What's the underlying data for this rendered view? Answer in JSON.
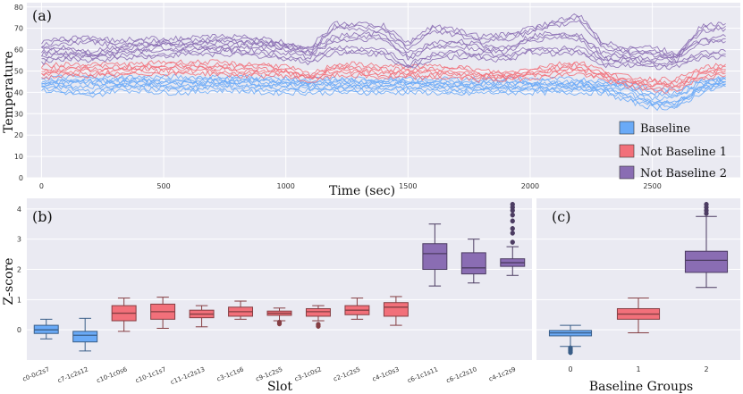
{
  "colors": {
    "baseline": "#6aaaf7",
    "not_baseline_1": "#f2707a",
    "not_baseline_2": "#8a6db3",
    "panel_bg": "#eaeaf2",
    "grid": "#ffffff"
  },
  "chart_data": [
    {
      "id": "a",
      "type": "line",
      "panel_label": "(a)",
      "xlabel": "Time (sec)",
      "ylabel": "Temperature",
      "xlim": [
        -60,
        2860
      ],
      "ylim": [
        0,
        82
      ],
      "xticks": [
        0,
        500,
        1000,
        1500,
        2000,
        2500
      ],
      "yticks": [
        0,
        10,
        20,
        30,
        40,
        50,
        60,
        70,
        80
      ],
      "legend": {
        "position": "bottom-right",
        "entries": [
          "Baseline",
          "Not Baseline 1",
          "Not Baseline 2"
        ]
      },
      "series": [
        {
          "name": "Baseline",
          "group": 0,
          "x": [
            0,
            100,
            200,
            300,
            400,
            500,
            600,
            700,
            800,
            900,
            1000,
            1100,
            1200,
            1300,
            1400,
            1500,
            1600,
            1700,
            1800,
            1900,
            2000,
            2100,
            2200,
            2300,
            2400,
            2500,
            2600,
            2700,
            2800
          ],
          "y": [
            44,
            44,
            44,
            44,
            45,
            44,
            44,
            45,
            45,
            44,
            44,
            44,
            44,
            44,
            44,
            44,
            44,
            43,
            43,
            43,
            43,
            43,
            43,
            42,
            41,
            36,
            36,
            43,
            45
          ]
        },
        {
          "name": "Baseline",
          "group": 0,
          "x": [
            0,
            100,
            200,
            300,
            400,
            500,
            600,
            700,
            800,
            900,
            1000,
            1100,
            1200,
            1300,
            1400,
            1500,
            1600,
            1700,
            1800,
            1900,
            2000,
            2100,
            2200,
            2300,
            2400,
            2500,
            2600,
            2700,
            2800
          ],
          "y": [
            46,
            46,
            46,
            46,
            46,
            46,
            46,
            46,
            46,
            46,
            45,
            45,
            45,
            45,
            45,
            45,
            45,
            45,
            45,
            45,
            45,
            45,
            45,
            44,
            44,
            40,
            40,
            45,
            46
          ]
        },
        {
          "name": "Baseline",
          "group": 0,
          "x": [
            0,
            100,
            200,
            300,
            400,
            500,
            600,
            700,
            800,
            900,
            1000,
            1100,
            1200,
            1300,
            1400,
            1500,
            1600,
            1700,
            1800,
            1900,
            2000,
            2100,
            2200,
            2300,
            2400,
            2500,
            2600,
            2700,
            2800
          ],
          "y": [
            42,
            41,
            39,
            42,
            42,
            41,
            41,
            42,
            42,
            41,
            41,
            41,
            41,
            41,
            41,
            41,
            41,
            40,
            41,
            41,
            41,
            41,
            41,
            41,
            37,
            34,
            34,
            41,
            44
          ]
        },
        {
          "name": "Not Baseline 1",
          "group": 1,
          "x": [
            0,
            100,
            200,
            300,
            400,
            500,
            600,
            700,
            800,
            900,
            1000,
            1100,
            1200,
            1300,
            1400,
            1500,
            1600,
            1700,
            1800,
            1900,
            2000,
            2100,
            2200,
            2300,
            2400,
            2500,
            2600,
            2700,
            2800
          ],
          "y": [
            51,
            52,
            52,
            52,
            52,
            53,
            53,
            53,
            52,
            52,
            51,
            47,
            52,
            52,
            51,
            51,
            51,
            51,
            49,
            48,
            50,
            52,
            53,
            49,
            46,
            45,
            45,
            50,
            52
          ]
        },
        {
          "name": "Not Baseline 1",
          "group": 1,
          "x": [
            0,
            100,
            200,
            300,
            400,
            500,
            600,
            700,
            800,
            900,
            1000,
            1100,
            1200,
            1300,
            1400,
            1500,
            1600,
            1700,
            1800,
            1900,
            2000,
            2100,
            2200,
            2300,
            2400,
            2500,
            2600,
            2700,
            2800
          ],
          "y": [
            48,
            49,
            49,
            49,
            50,
            50,
            50,
            50,
            49,
            49,
            49,
            46,
            49,
            49,
            48,
            48,
            48,
            48,
            47,
            47,
            48,
            49,
            50,
            47,
            44,
            42,
            42,
            48,
            49
          ]
        },
        {
          "name": "Not Baseline 2",
          "group": 2,
          "x": [
            0,
            100,
            200,
            300,
            400,
            500,
            600,
            700,
            800,
            900,
            1000,
            1100,
            1200,
            1300,
            1400,
            1500,
            1600,
            1700,
            1800,
            1900,
            2000,
            2100,
            2200,
            2300,
            2400,
            2500,
            2600,
            2700,
            2800
          ],
          "y": [
            62,
            64,
            65,
            63,
            64,
            64,
            64,
            65,
            65,
            64,
            62,
            60,
            71,
            71,
            70,
            62,
            70,
            68,
            65,
            66,
            69,
            72,
            75,
            62,
            60,
            60,
            57,
            70,
            71
          ]
        },
        {
          "name": "Not Baseline 2",
          "group": 2,
          "x": [
            0,
            100,
            200,
            300,
            400,
            500,
            600,
            700,
            800,
            900,
            1000,
            1100,
            1200,
            1300,
            1400,
            1500,
            1600,
            1700,
            1800,
            1900,
            2000,
            2100,
            2200,
            2300,
            2400,
            2500,
            2600,
            2700,
            2800
          ],
          "y": [
            59,
            60,
            58,
            60,
            61,
            62,
            62,
            62,
            62,
            62,
            61,
            59,
            65,
            66,
            66,
            57,
            62,
            63,
            61,
            60,
            65,
            67,
            66,
            57,
            57,
            56,
            56,
            64,
            65
          ]
        },
        {
          "name": "Not Baseline 2",
          "group": 2,
          "x": [
            0,
            100,
            200,
            300,
            400,
            500,
            600,
            700,
            800,
            900,
            1000,
            1100,
            1200,
            1300,
            1400,
            1500,
            1600,
            1700,
            1800,
            1900,
            2000,
            2100,
            2200,
            2300,
            2400,
            2500,
            2600,
            2700,
            2800
          ],
          "y": [
            55,
            57,
            56,
            57,
            58,
            58,
            59,
            59,
            59,
            58,
            57,
            55,
            60,
            59,
            59,
            52,
            57,
            58,
            57,
            56,
            60,
            59,
            60,
            54,
            54,
            53,
            53,
            57,
            58
          ]
        }
      ]
    },
    {
      "id": "b",
      "type": "box",
      "panel_label": "(b)",
      "xlabel": "Slot",
      "ylabel": "Z-score",
      "ylim": [
        -1.0,
        4.35
      ],
      "yticks": [
        0,
        1,
        2,
        3,
        4
      ],
      "categories": [
        "c0-0c2s7",
        "c7-1c2s12",
        "c10-1c0s6",
        "c10-1c1s7",
        "c11-1c2s13",
        "c3-1c1s6",
        "c9-1c2s5",
        "c3-1c0s2",
        "c2-1c2s5",
        "c4-1c0s3",
        "c6-1c1s11",
        "c6-1c2s10",
        "c4-1c2s9"
      ],
      "groups": [
        0,
        0,
        1,
        1,
        1,
        1,
        1,
        1,
        1,
        1,
        2,
        2,
        2
      ],
      "boxes": [
        {
          "whislo": -0.3,
          "q1": -0.12,
          "med": 0.0,
          "q3": 0.15,
          "whishi": 0.35,
          "fliers": []
        },
        {
          "whislo": -0.7,
          "q1": -0.4,
          "med": -0.18,
          "q3": -0.05,
          "whishi": 0.38,
          "fliers": []
        },
        {
          "whislo": -0.05,
          "q1": 0.3,
          "med": 0.55,
          "q3": 0.8,
          "whishi": 1.05,
          "fliers": []
        },
        {
          "whislo": 0.05,
          "q1": 0.35,
          "med": 0.6,
          "q3": 0.85,
          "whishi": 1.08,
          "fliers": []
        },
        {
          "whislo": 0.1,
          "q1": 0.4,
          "med": 0.52,
          "q3": 0.65,
          "whishi": 0.8,
          "fliers": []
        },
        {
          "whislo": 0.35,
          "q1": 0.45,
          "med": 0.6,
          "q3": 0.75,
          "whishi": 0.95,
          "fliers": []
        },
        {
          "whislo": 0.3,
          "q1": 0.48,
          "med": 0.55,
          "q3": 0.62,
          "whishi": 0.72,
          "fliers": [
            0.2,
            0.25
          ]
        },
        {
          "whislo": 0.3,
          "q1": 0.45,
          "med": 0.6,
          "q3": 0.7,
          "whishi": 0.8,
          "fliers": [
            0.12,
            0.18
          ]
        },
        {
          "whislo": 0.35,
          "q1": 0.5,
          "med": 0.65,
          "q3": 0.8,
          "whishi": 1.05,
          "fliers": []
        },
        {
          "whislo": 0.15,
          "q1": 0.45,
          "med": 0.75,
          "q3": 0.9,
          "whishi": 1.1,
          "fliers": []
        },
        {
          "whislo": 1.45,
          "q1": 2.0,
          "med": 2.52,
          "q3": 2.85,
          "whishi": 3.5,
          "fliers": []
        },
        {
          "whislo": 1.55,
          "q1": 1.85,
          "med": 2.05,
          "q3": 2.55,
          "whishi": 3.0,
          "fliers": []
        },
        {
          "whislo": 1.8,
          "q1": 2.1,
          "med": 2.22,
          "q3": 2.35,
          "whishi": 2.75,
          "fliers": [
            2.9,
            3.2,
            3.35,
            3.6,
            3.8,
            3.95,
            4.05,
            4.15
          ]
        }
      ]
    },
    {
      "id": "c",
      "type": "box",
      "panel_label": "(c)",
      "xlabel": "Baseline Groups",
      "ylabel": "",
      "ylim": [
        -1.0,
        4.35
      ],
      "categories": [
        "0",
        "1",
        "2"
      ],
      "groups": [
        0,
        1,
        2
      ],
      "boxes": [
        {
          "whislo": -0.55,
          "q1": -0.2,
          "med": -0.1,
          "q3": -0.02,
          "whishi": 0.15,
          "fliers": [
            -0.6,
            -0.65,
            -0.7,
            -0.75
          ]
        },
        {
          "whislo": -0.1,
          "q1": 0.35,
          "med": 0.52,
          "q3": 0.7,
          "whishi": 1.05,
          "fliers": []
        },
        {
          "whislo": 1.4,
          "q1": 1.9,
          "med": 2.3,
          "q3": 2.6,
          "whishi": 3.75,
          "fliers": [
            3.85,
            3.95,
            4.05,
            4.15
          ]
        }
      ]
    }
  ]
}
